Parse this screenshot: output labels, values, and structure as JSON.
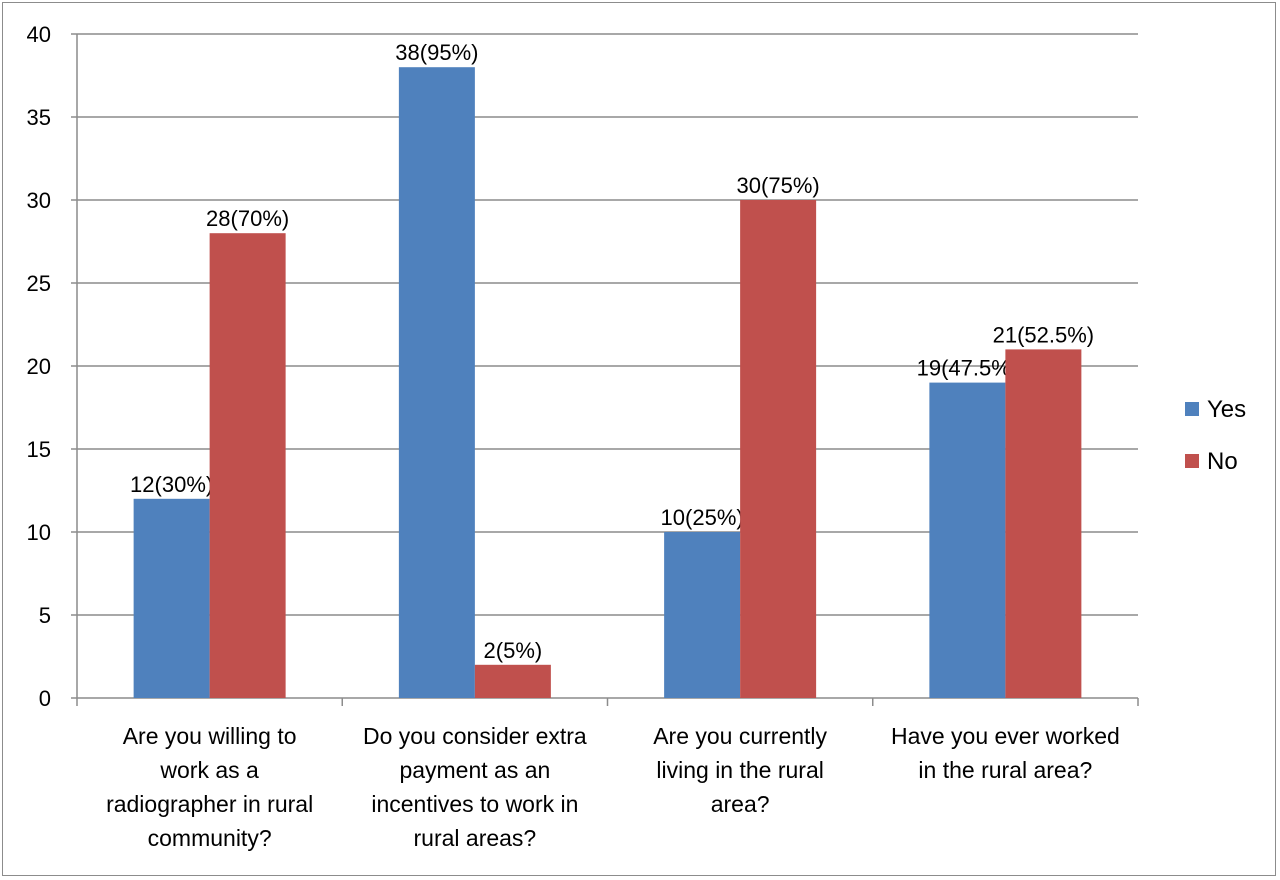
{
  "chart_data": {
    "type": "bar",
    "categories": [
      [
        "Are you willing to",
        "work as a",
        "radiographer in rural",
        "community?"
      ],
      [
        "Do you consider extra",
        "payment as an",
        "incentives to work in",
        "rural areas?"
      ],
      [
        "Are you currently",
        "living in the rural",
        "area?"
      ],
      [
        "Have you ever worked",
        "in the rural area?"
      ]
    ],
    "series": [
      {
        "name": "Yes",
        "color": "#4f81bd",
        "values": [
          12,
          38,
          10,
          19
        ],
        "labels": [
          "12(30%)",
          "38(95%)",
          "10(25%)",
          "19(47.5%)"
        ]
      },
      {
        "name": "No",
        "color": "#c0504d",
        "values": [
          28,
          2,
          30,
          21
        ],
        "labels": [
          "28(70%)",
          "2(5%)",
          "30(75%)",
          "21(52.5%)"
        ]
      }
    ],
    "ylim": [
      0,
      40
    ],
    "yticks": [
      0,
      5,
      10,
      15,
      20,
      25,
      30,
      35,
      40
    ],
    "grid": true,
    "legend": "right"
  }
}
